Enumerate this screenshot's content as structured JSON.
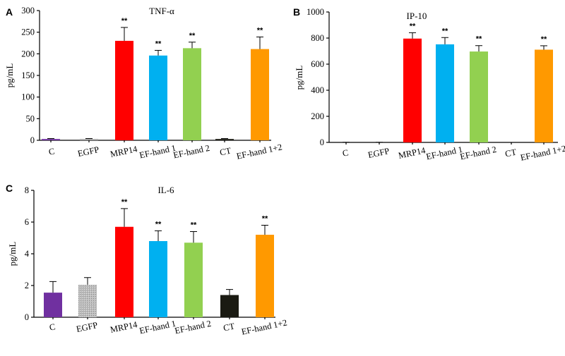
{
  "chart_data": [
    {
      "panel": "A",
      "type": "bar",
      "title": "TNF-α",
      "ylabel": "pg/mL",
      "xlabel": "",
      "ylim": [
        0,
        300
      ],
      "yticks": [
        0,
        50,
        100,
        150,
        200,
        250,
        300
      ],
      "categories": [
        "C",
        "EGFP",
        "MRP14",
        "EF-hand 1",
        "EF-hand 2",
        "CT",
        "EF-hand 1+2"
      ],
      "values": [
        3,
        3,
        230,
        196,
        213,
        3,
        211
      ],
      "errors": [
        1,
        1,
        31,
        12,
        14,
        1,
        28
      ],
      "significance": [
        "",
        "",
        "**",
        "**",
        "**",
        "",
        "**"
      ],
      "colors": [
        "#7030A0",
        "#A6A6A6",
        "#FF0000",
        "#00B0F0",
        "#92D050",
        "#1A1A12",
        "#FF9900"
      ],
      "grid": false
    },
    {
      "panel": "B",
      "type": "bar",
      "title": "IP-10",
      "ylabel": "pg/mL",
      "xlabel": "",
      "ylim": [
        0,
        1000
      ],
      "yticks": [
        0,
        200,
        400,
        600,
        800,
        1000
      ],
      "categories": [
        "C",
        "EGFP",
        "MRP14",
        "EF-hand 1",
        "EF-hand 2",
        "CT",
        "EF-hand 1+2"
      ],
      "values": [
        0,
        0,
        796,
        752,
        697,
        0,
        711
      ],
      "errors": [
        1,
        1,
        45,
        52,
        45,
        0,
        30
      ],
      "significance": [
        "",
        "",
        "**",
        "**",
        "**",
        "",
        "**"
      ],
      "colors": [
        "#7030A0",
        "#A6A6A6",
        "#FF0000",
        "#00B0F0",
        "#92D050",
        "#1A1A12",
        "#FF9900"
      ],
      "grid": false
    },
    {
      "panel": "C",
      "type": "bar",
      "title": "IL-6",
      "ylabel": "pg/mL",
      "xlabel": "",
      "ylim": [
        0,
        8
      ],
      "yticks": [
        0,
        2,
        4,
        6,
        8
      ],
      "categories": [
        "C",
        "EGFP",
        "MRP14",
        "EF-hand 1",
        "EF-hand 2",
        "CT",
        "EF-hand 1+2"
      ],
      "values": [
        1.55,
        2.05,
        5.7,
        4.8,
        4.7,
        1.4,
        5.2
      ],
      "errors": [
        0.7,
        0.45,
        1.15,
        0.65,
        0.7,
        0.35,
        0.6
      ],
      "significance": [
        "",
        "",
        "**",
        "**",
        "**",
        "",
        "**"
      ],
      "colors": [
        "#7030A0",
        "#A6A6A6",
        "#FF0000",
        "#00B0F0",
        "#92D050",
        "#1A1A12",
        "#FF9900"
      ],
      "hatched": [
        false,
        true,
        false,
        false,
        false,
        false,
        false
      ],
      "grid": false
    }
  ]
}
